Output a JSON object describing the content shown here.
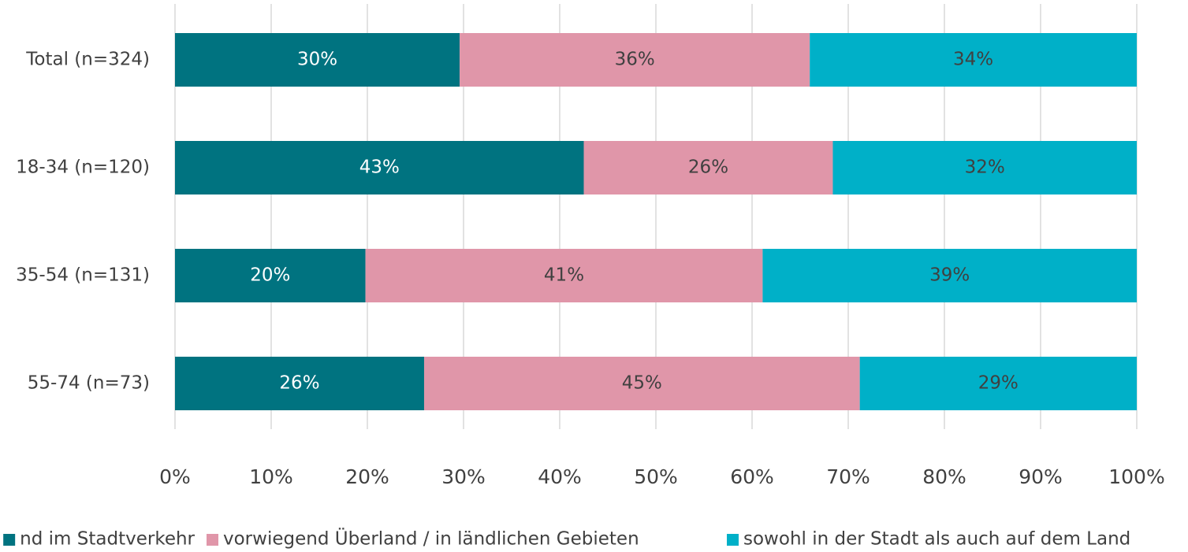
{
  "chart_data": {
    "type": "stacked_bar_horizontal",
    "categories": [
      "Total (n=324)",
      "18-34 (n=120)",
      "35-54 (n=131)",
      "55-74 (n=73)"
    ],
    "series": [
      {
        "name": "nd im Stadtverkehr",
        "color": "#007380",
        "label_color": "#ffffff",
        "values": [
          29.6,
          42.5,
          19.8,
          25.9
        ],
        "value_labels": [
          "30%",
          "43%",
          "20%",
          "26%"
        ]
      },
      {
        "name": "vorwiegend Überland / in ländlichen Gebieten",
        "color": "#e096a9",
        "label_color": "#404040",
        "values": [
          36.4,
          25.9,
          41.3,
          45.3
        ],
        "value_labels": [
          "36%",
          "26%",
          "41%",
          "45%"
        ]
      },
      {
        "name": "sowohl in der Stadt als auch auf dem Land",
        "color": "#00b0c8",
        "label_color": "#404040",
        "values": [
          34.0,
          31.6,
          38.9,
          28.8
        ],
        "value_labels": [
          "34%",
          "32%",
          "39%",
          "29%"
        ]
      }
    ],
    "xlim": [
      0,
      100
    ],
    "xticks": [
      {
        "value": 0,
        "label": "0%"
      },
      {
        "value": 10,
        "label": "10%"
      },
      {
        "value": 20,
        "label": "20%"
      },
      {
        "value": 30,
        "label": "30%"
      },
      {
        "value": 40,
        "label": "40%"
      },
      {
        "value": 50,
        "label": "50%"
      },
      {
        "value": 60,
        "label": "60%"
      },
      {
        "value": 70,
        "label": "70%"
      },
      {
        "value": 80,
        "label": "80%"
      },
      {
        "value": 90,
        "label": "90%"
      },
      {
        "value": 100,
        "label": "100%"
      }
    ],
    "grid": true
  }
}
